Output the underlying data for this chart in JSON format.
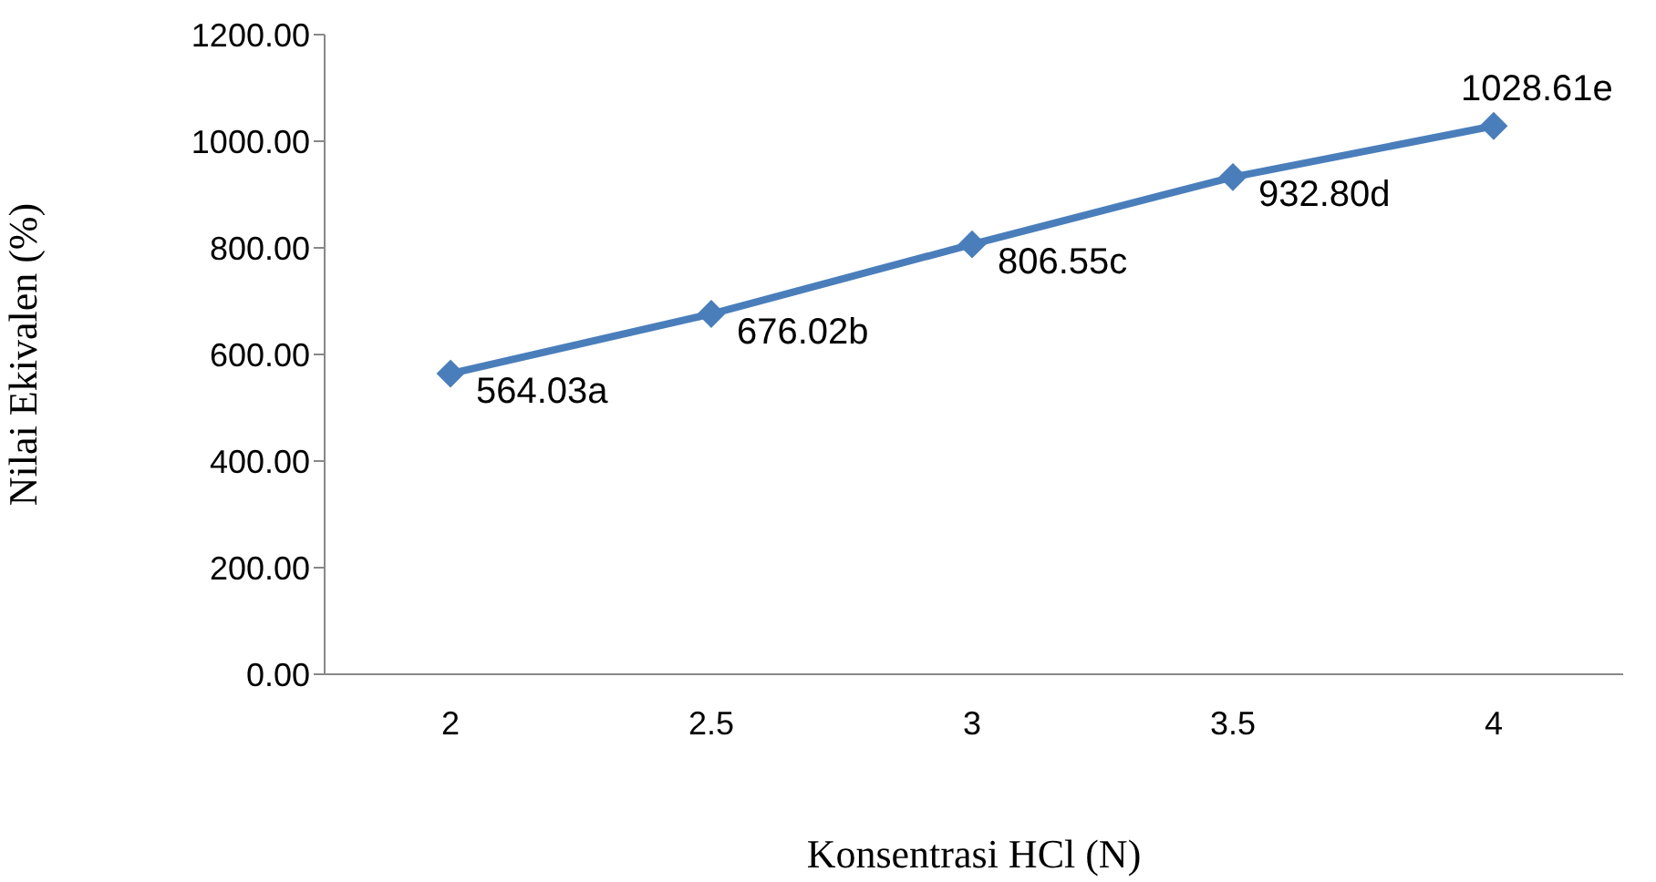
{
  "chart_data": {
    "type": "line",
    "xlabel": "Konsentrasi HCl (N)",
    "ylabel": "Nilai Ekivalen (%)",
    "categories": [
      "2",
      "2.5",
      "3",
      "3.5",
      "4"
    ],
    "series": [
      {
        "color": "#4a7ebb",
        "values": [
          564.03,
          676.02,
          806.55,
          932.8,
          1028.61
        ],
        "value_labels": [
          "564.03a",
          "676.02b",
          "806.55c",
          "932.80d",
          "1028.61e"
        ]
      }
    ],
    "ylim": [
      0,
      1200
    ],
    "yticks": [
      {
        "value": 0,
        "label": "0.00"
      },
      {
        "value": 200,
        "label": "200.00"
      },
      {
        "value": 400,
        "label": "400.00"
      },
      {
        "value": 600,
        "label": "600.00"
      },
      {
        "value": 800,
        "label": "800.00"
      },
      {
        "value": 1000,
        "label": "1000.00"
      },
      {
        "value": 1200,
        "label": "1200.00"
      }
    ],
    "grid": false,
    "legend": false,
    "marker": "diamond",
    "line_style": "solid"
  }
}
